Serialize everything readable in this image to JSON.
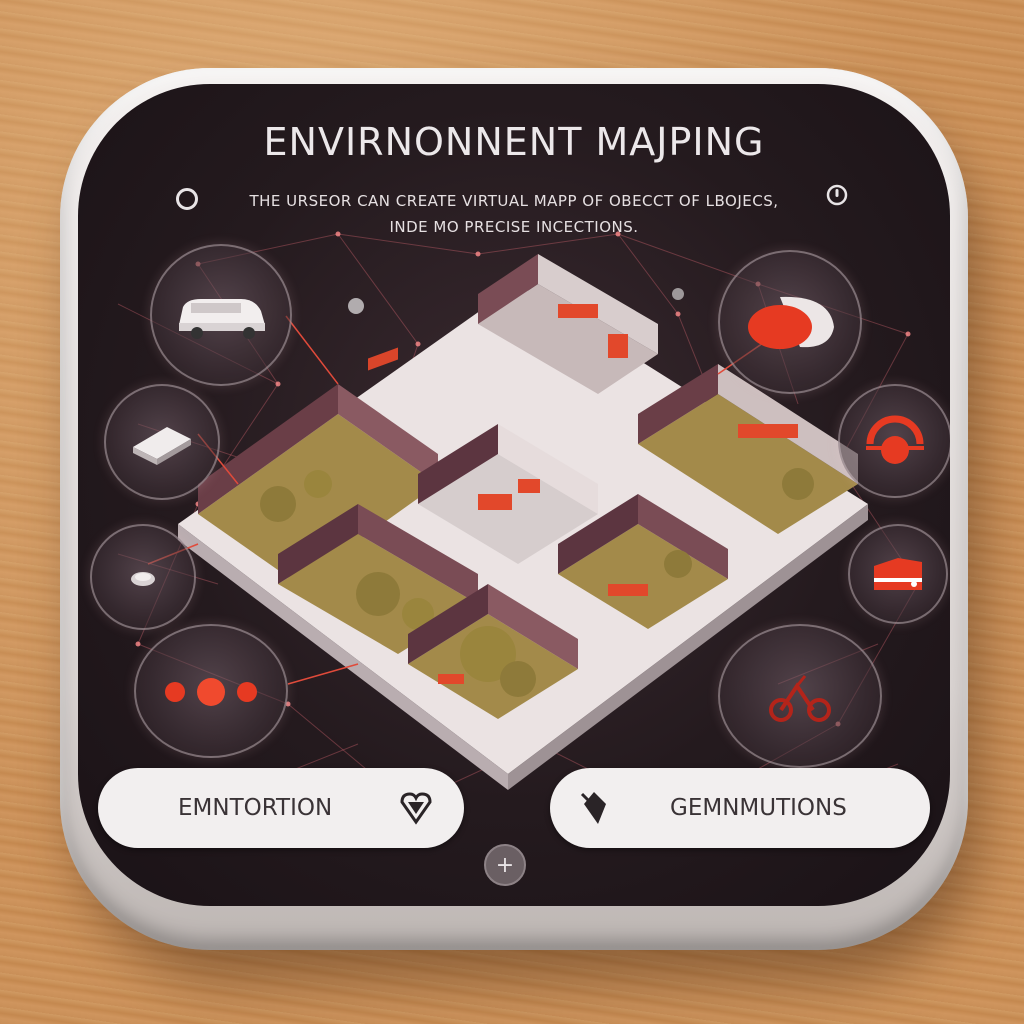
{
  "header": {
    "title": "ENVIRNONNENT MAJPING",
    "subtitle_line1": "THE URSEOR CAN CREATE VIRTUAL MAPP OF OBECCT OF LBOJECS,",
    "subtitle_line2": "INDE MO PRECISE INCECTIONS."
  },
  "pods": [
    {
      "icon": "car-icon"
    },
    {
      "icon": "cushion-icon"
    },
    {
      "icon": "tablet-icon"
    },
    {
      "icon": "dial-icon"
    },
    {
      "icon": "sensor-icon"
    },
    {
      "icon": "toolbox-icon"
    },
    {
      "icon": "controller-icon"
    },
    {
      "icon": "scooter-icon"
    }
  ],
  "actions": {
    "left_label": "EMNTORTION",
    "left_icon": "heart-shield-icon",
    "right_label": "GEMNMUTIONS",
    "right_icon": "diamond-icon",
    "add_label": "+"
  },
  "colors": {
    "screen": "#241a1e",
    "accent": "#e8452c",
    "button": "#f2efef"
  }
}
